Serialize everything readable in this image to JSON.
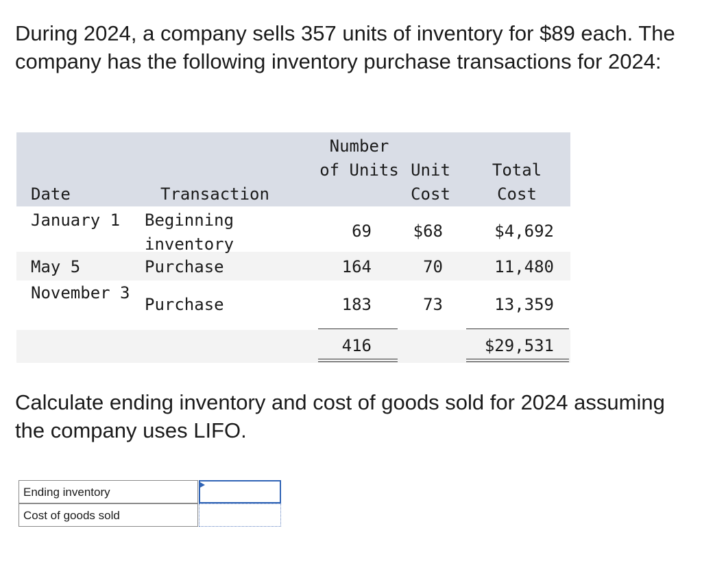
{
  "question": {
    "text": "During 2024, a company sells 357 units of inventory for $89 each. The company has the following inventory purchase transactions for 2024:"
  },
  "table": {
    "headers": {
      "date": "Date",
      "transaction": "Transaction",
      "units": "Number of Units",
      "unit_cost": "Unit Cost",
      "total_cost": "Total Cost"
    },
    "rows": [
      {
        "date": "January 1",
        "transaction": "Beginning inventory",
        "units": "69",
        "unit_cost": "$68",
        "total_cost": "$4,692"
      },
      {
        "date": "May 5",
        "transaction": "Purchase",
        "units": "164",
        "unit_cost": "70",
        "total_cost": "11,480"
      },
      {
        "date": "November 3",
        "transaction": "Purchase",
        "units": "183",
        "unit_cost": "73",
        "total_cost": "13,359"
      }
    ],
    "totals": {
      "units": "416",
      "total_cost": "$29,531"
    }
  },
  "instruction": {
    "text": "Calculate ending inventory and cost of goods sold for 2024 assuming the company uses LIFO."
  },
  "answer_form": {
    "ending_inventory_label": "Ending inventory",
    "ending_inventory_value": "",
    "cogs_label": "Cost of goods sold",
    "cogs_value": ""
  }
}
